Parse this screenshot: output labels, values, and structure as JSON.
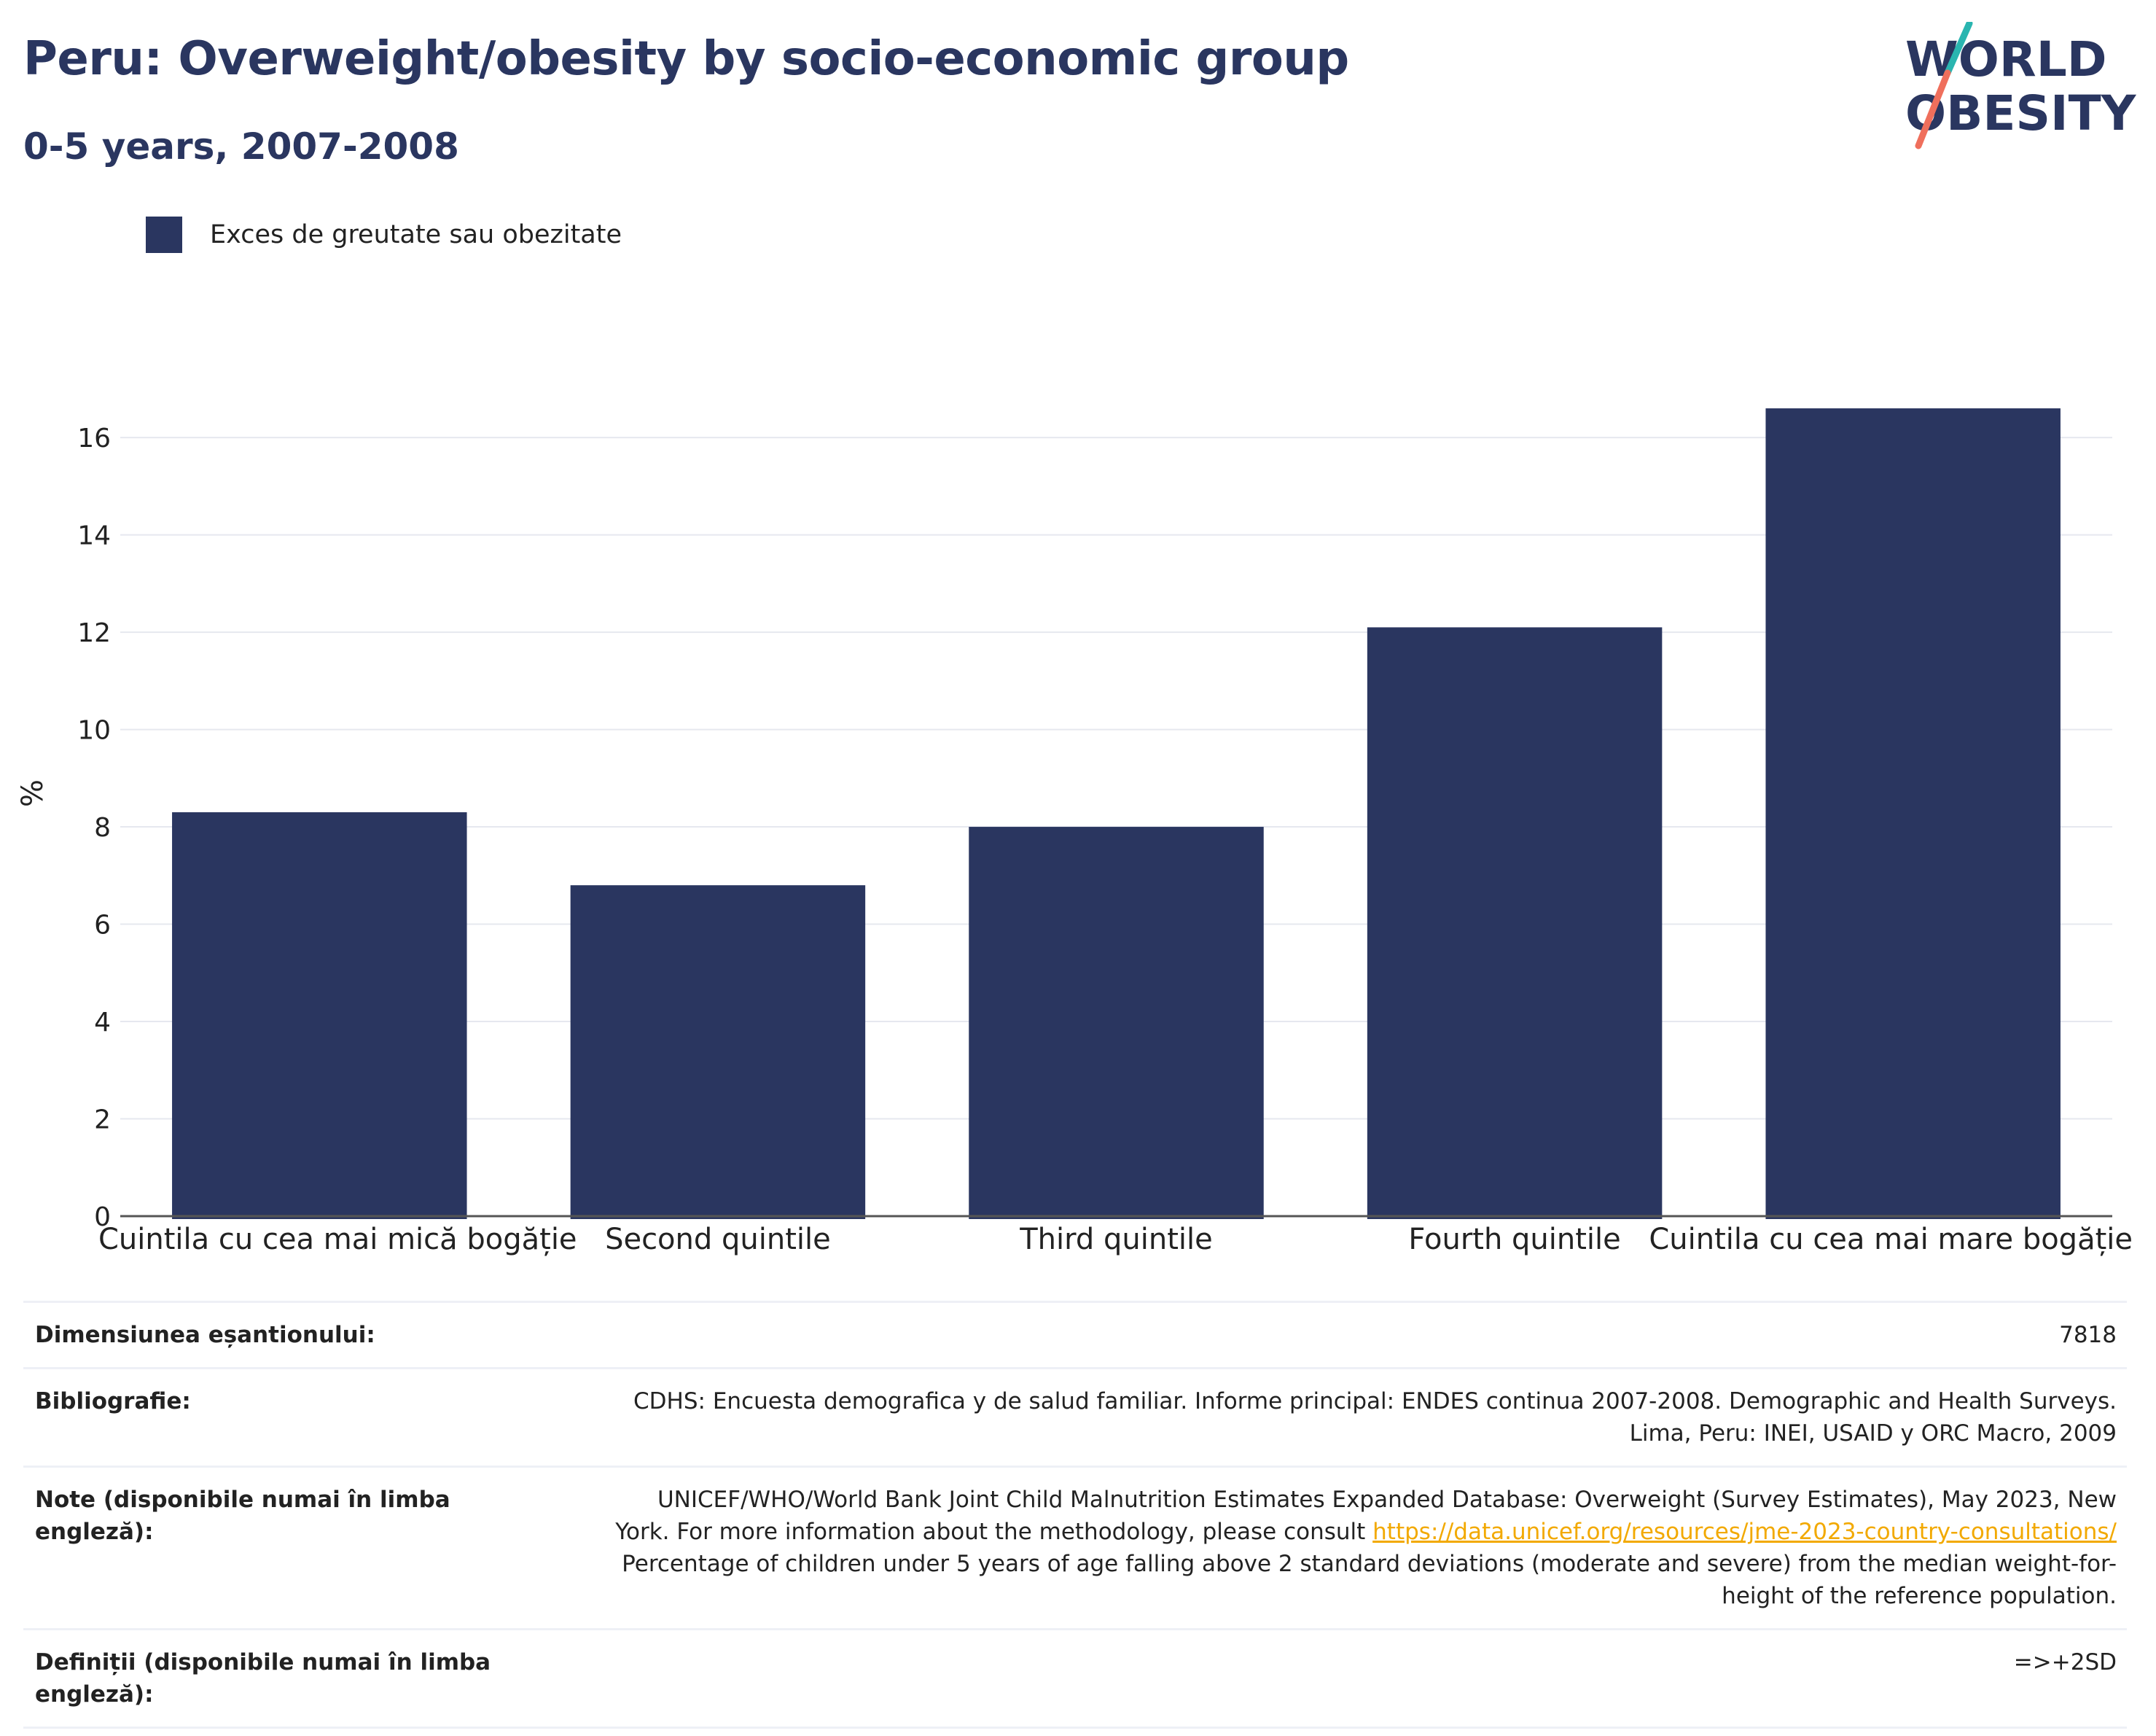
{
  "header": {
    "title": "Peru: Overweight/obesity by socio-economic group",
    "subtitle": "0-5 years, 2007-2008"
  },
  "logo": {
    "line1": "WORLD",
    "line2": "OBESITY",
    "colors": {
      "text": "#2a3660",
      "slash_top": "#2ab5b0",
      "slash_bottom": "#ef6f5c"
    }
  },
  "colors": {
    "bar": "#2a3660",
    "grid": "#e6e8ef",
    "axis": "#555555"
  },
  "chart_data": {
    "type": "bar",
    "categories": [
      "Cuintila cu cea mai mică bogăție",
      "Second quintile",
      "Third quintile",
      "Fourth quintile",
      "Cuintila cu cea mai mare bogăție"
    ],
    "series": [
      {
        "name": "Exces de greutate sau obezitate",
        "values": [
          8.3,
          6.8,
          8.0,
          12.1,
          16.6
        ]
      }
    ],
    "ylabel": "%",
    "ylim": [
      0,
      17.5
    ],
    "yticks": [
      0,
      2,
      4,
      6,
      8,
      10,
      12,
      14,
      16
    ],
    "grid": true,
    "legend": "top-left"
  },
  "info": {
    "sample_label": "Dimensiunea eșantionului:",
    "sample_value": "7818",
    "biblio_label": "Bibliografie:",
    "biblio_value_1": "CDHS: Encuesta demografica y de salud familiar. Informe principal: ENDES continua 2007-2008. Demographic and Health Surveys.",
    "biblio_value_2": "Lima, Peru: INEI, USAID y ORC Macro, 2009",
    "notes_label": "Note (disponibile numai în limba engleză):",
    "notes_line_1": "UNICEF/WHO/World Bank Joint Child Malnutrition Estimates Expanded Database: Overweight (Survey Estimates), May 2023, New",
    "notes_line_2_prefix": "York. For more information about the methodology, please consult ",
    "notes_link": "https://data.unicef.org/resources/jme-2023-country-consultations/",
    "notes_line_3": "Percentage of children under 5 years of age falling above 2 standard deviations (moderate and severe) from the median weight-for-",
    "notes_line_4": "height of the reference population.",
    "defs_label": "Definiții (disponibile numai în limba engleză):",
    "defs_value": "=>+2SD"
  }
}
